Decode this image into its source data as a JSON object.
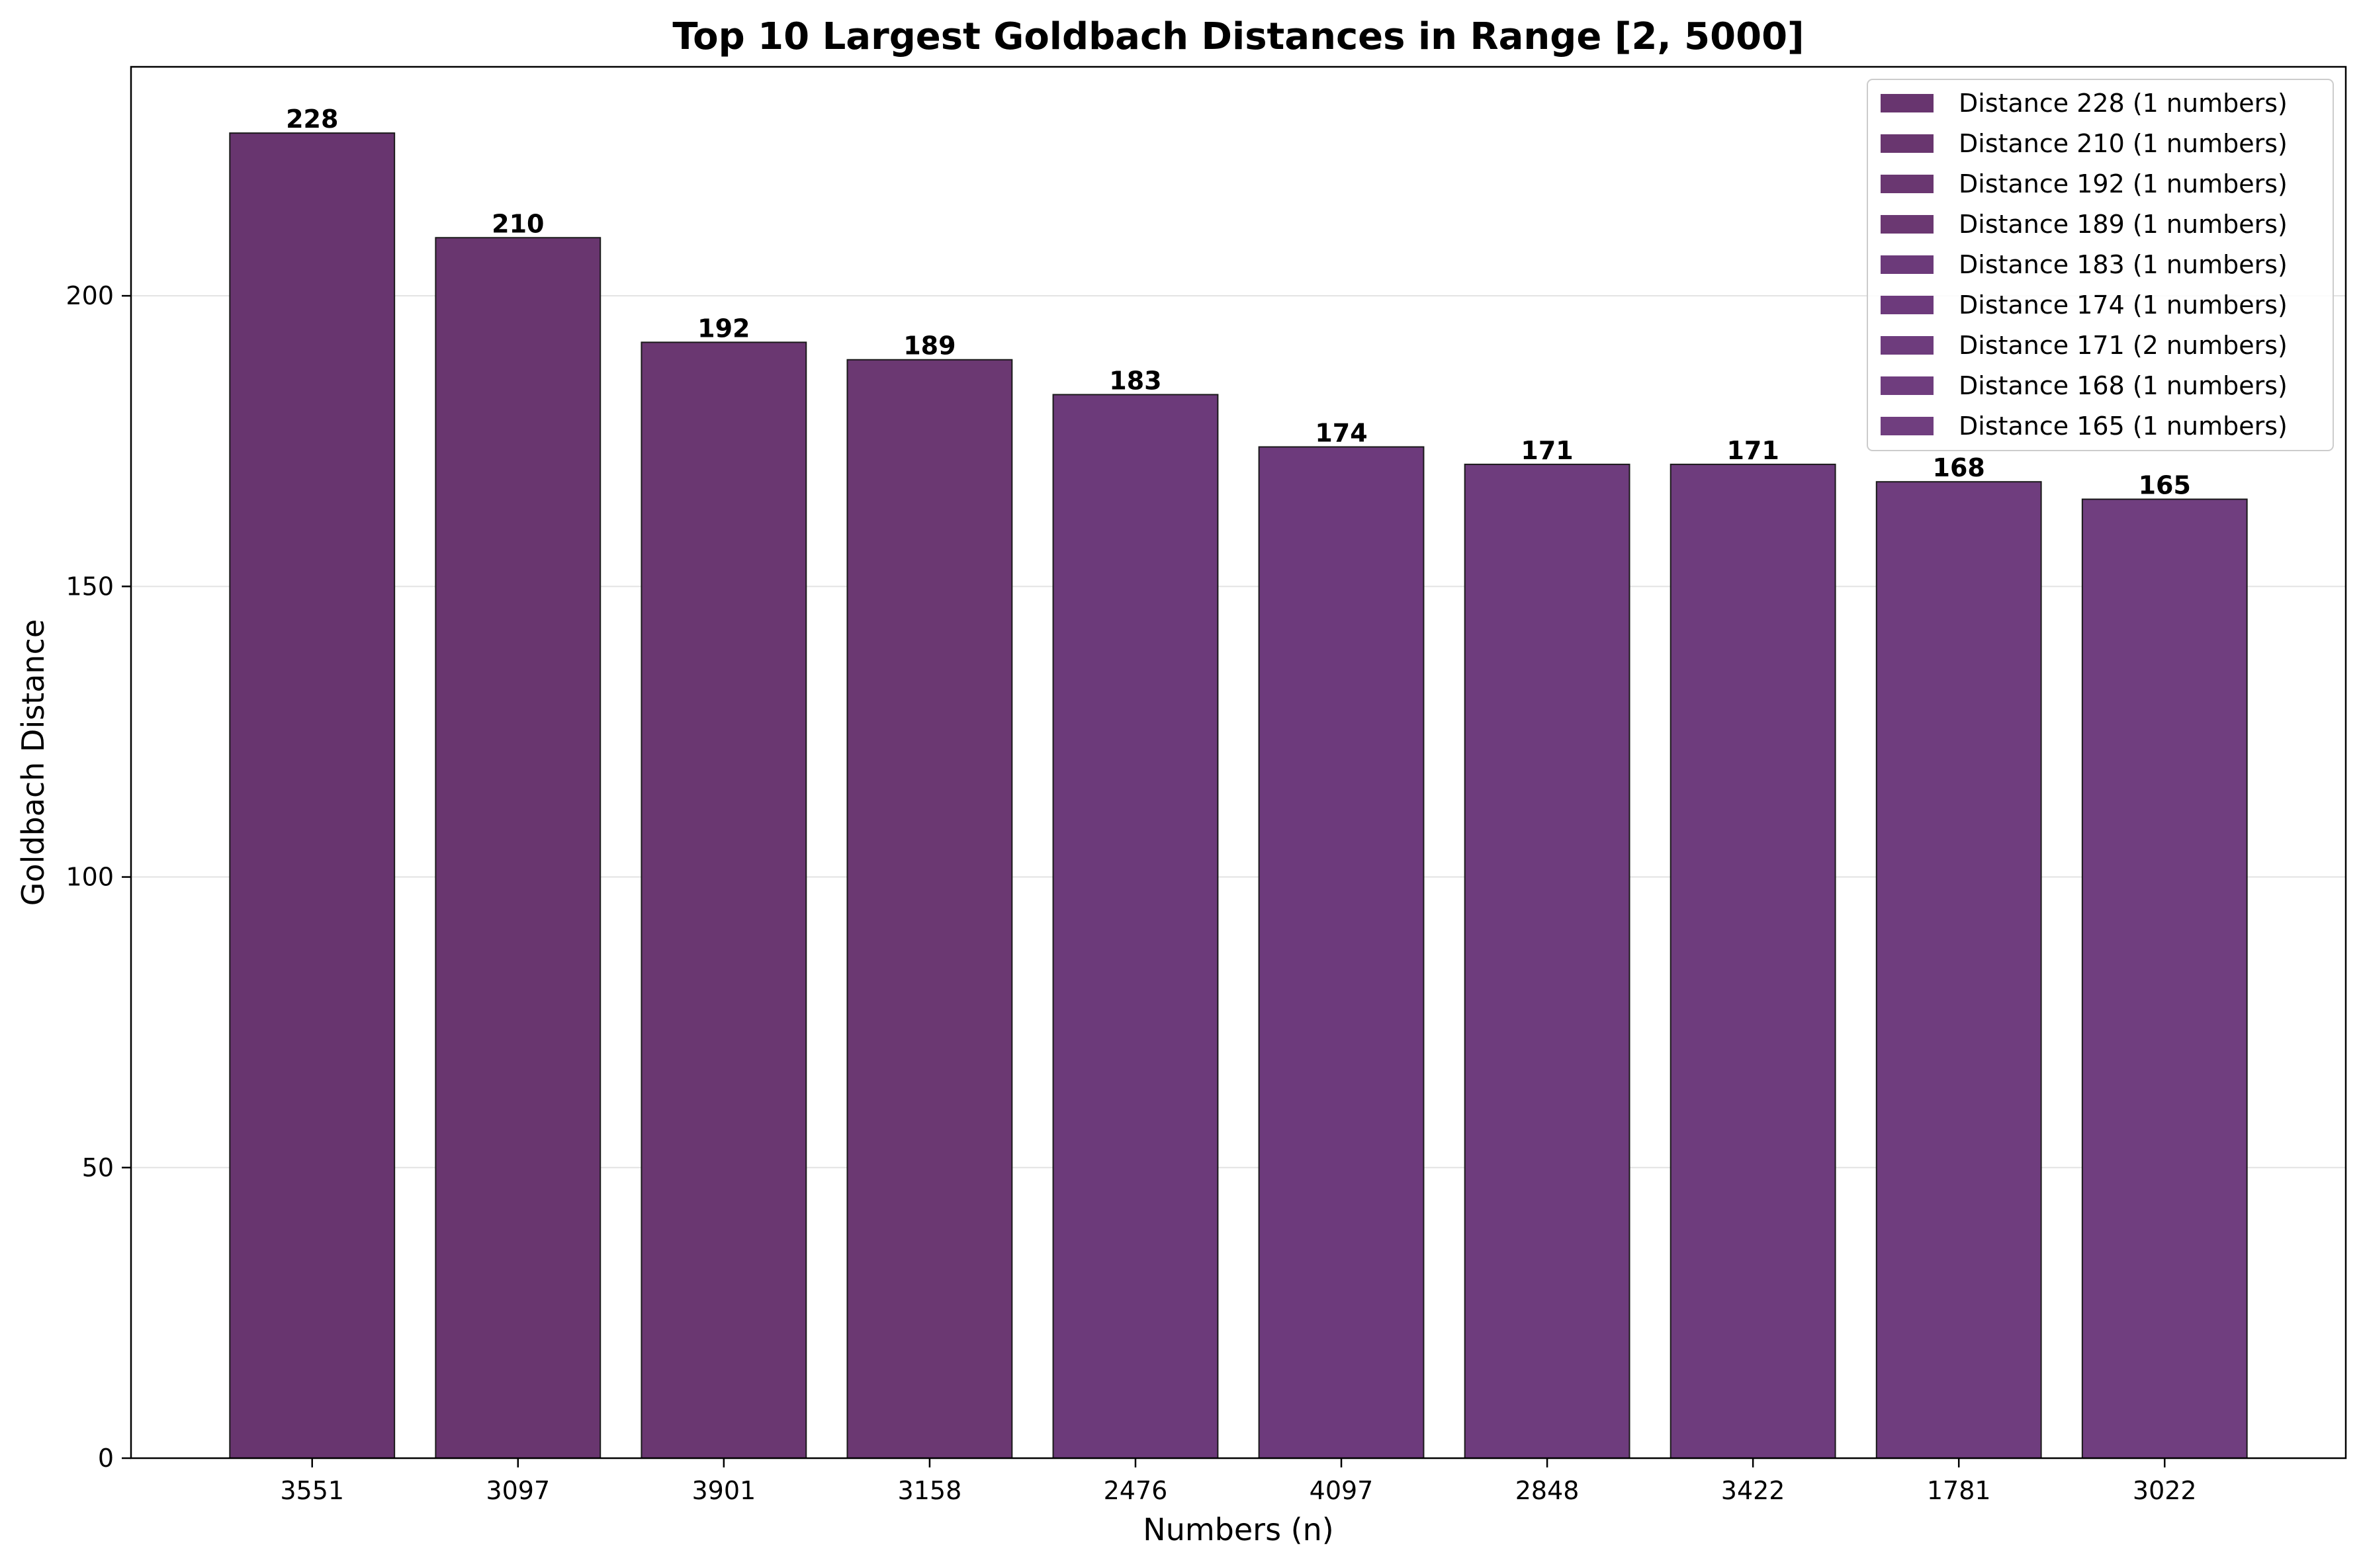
{
  "chart_data": {
    "type": "bar",
    "title": "Top 10 Largest Goldbach Distances in Range [2, 5000]",
    "xlabel": "Numbers (n)",
    "ylabel": "Goldbach Distance",
    "categories": [
      "3551",
      "3097",
      "3901",
      "3158",
      "2476",
      "4097",
      "2848",
      "3422",
      "1781",
      "3022"
    ],
    "values": [
      228,
      210,
      192,
      189,
      183,
      174,
      171,
      171,
      168,
      165
    ],
    "value_labels": [
      "228",
      "210",
      "192",
      "189",
      "183",
      "174",
      "171",
      "171",
      "168",
      "165"
    ],
    "ylim": [
      0,
      239.4
    ],
    "yticks": [
      0,
      50,
      100,
      150,
      200
    ],
    "ytick_labels": [
      "0",
      "50",
      "100",
      "150",
      "200"
    ],
    "grid": "y",
    "legend_position": "top-right",
    "legend": [
      {
        "label": "Distance 228 (1 numbers)",
        "color": "#68356f"
      },
      {
        "label": "Distance 210 (1 numbers)",
        "color": "#69366f"
      },
      {
        "label": "Distance 192 (1 numbers)",
        "color": "#6a3771"
      },
      {
        "label": "Distance 189 (1 numbers)",
        "color": "#6b3872"
      },
      {
        "label": "Distance 183 (1 numbers)",
        "color": "#6c3a7a"
      },
      {
        "label": "Distance 174 (1 numbers)",
        "color": "#6d3a7c"
      },
      {
        "label": "Distance 171 (2 numbers)",
        "color": "#6e3c7d"
      },
      {
        "label": "Distance 168 (1 numbers)",
        "color": "#6f3d7e"
      },
      {
        "label": "Distance 165 (1 numbers)",
        "color": "#703e7f"
      }
    ],
    "bar_colors": [
      "#68356f",
      "#69366f",
      "#6a3771",
      "#6b3872",
      "#6c3a7a",
      "#6d3a7c",
      "#6e3c7d",
      "#6e3c7d",
      "#6f3d7e",
      "#703e7f"
    ],
    "bar_edge_color": "#1a1a1a"
  }
}
